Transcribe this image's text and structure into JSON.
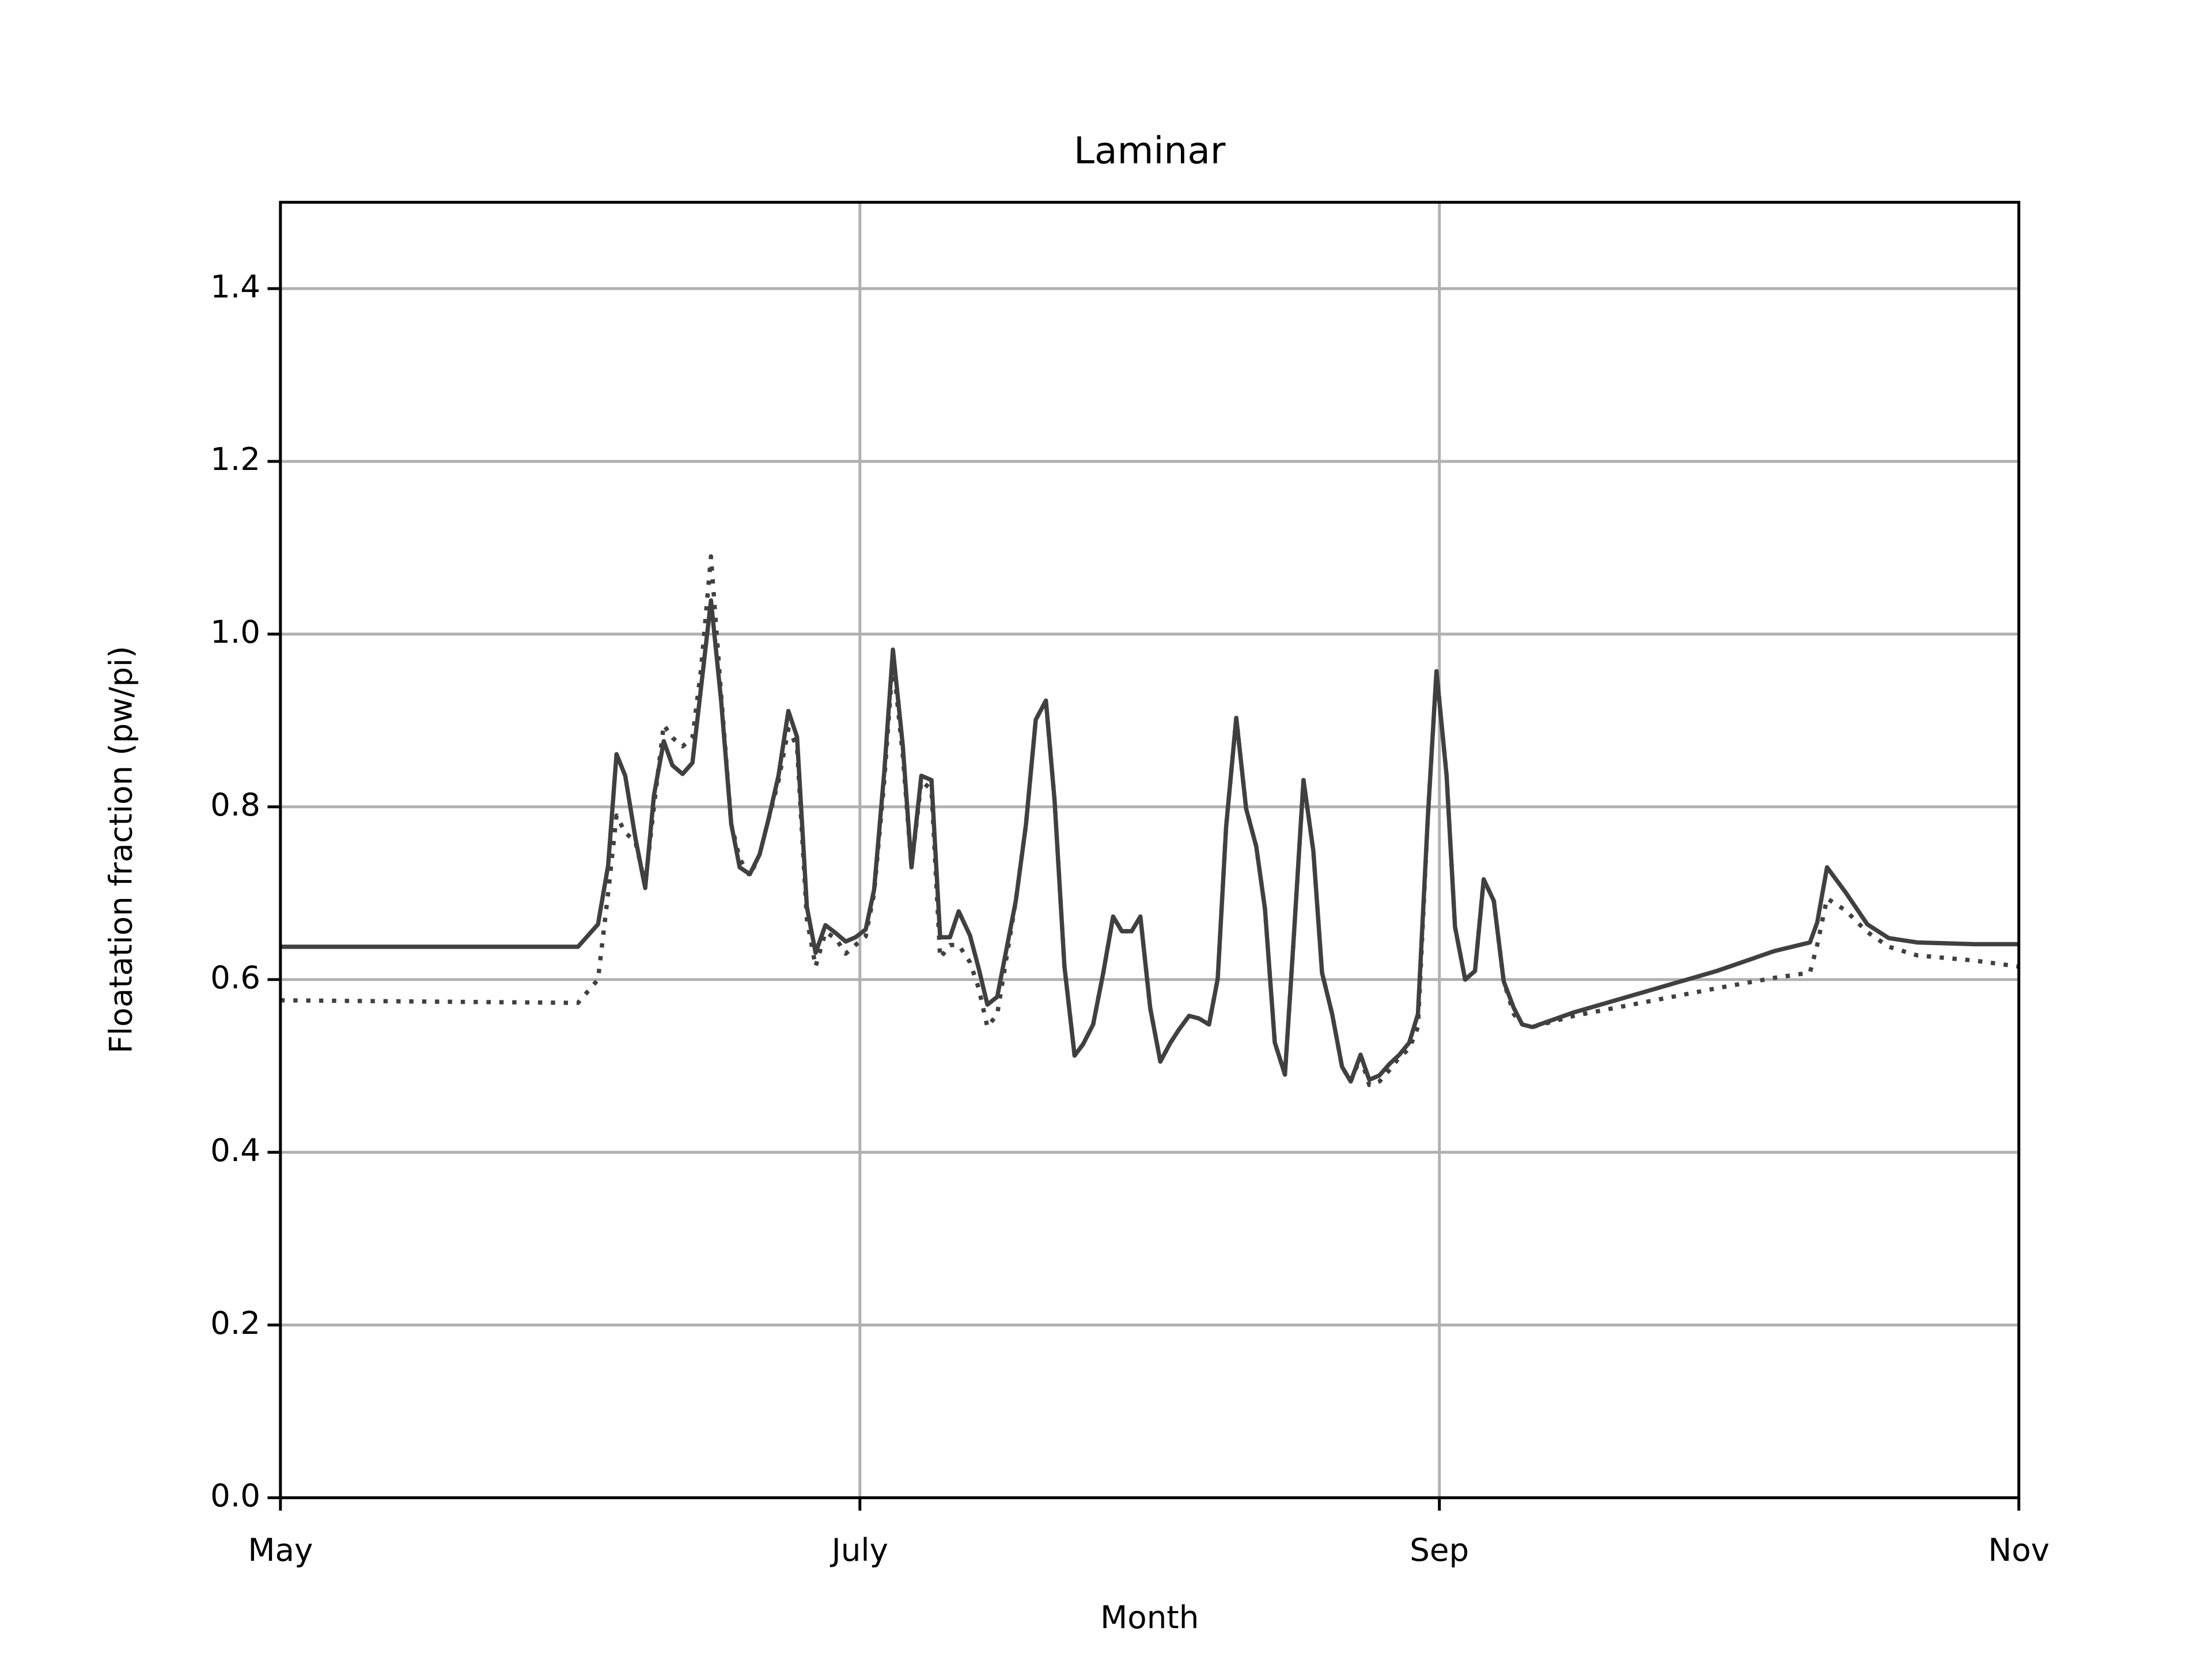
{
  "chart_data": {
    "type": "line",
    "title": "Laminar",
    "xlabel": "Month",
    "ylabel": "Floatation fraction (pw/pi)",
    "xlim": [
      5,
      11
    ],
    "xticks": [
      {
        "value": 5,
        "label": "May"
      },
      {
        "value": 7,
        "label": "July"
      },
      {
        "value": 9,
        "label": "Sep"
      },
      {
        "value": 11,
        "label": "Nov"
      }
    ],
    "ylim": [
      0,
      1.5
    ],
    "yticks": [
      {
        "value": 0,
        "label": "0.0"
      },
      0.2,
      0.4,
      0.6,
      0.8,
      {
        "value": 1,
        "label": "1.0"
      },
      1.2,
      1.4
    ],
    "grid": true,
    "x": [
      5,
      6.027,
      6.096,
      6.131,
      6.16,
      6.19,
      6.225,
      6.259,
      6.289,
      6.323,
      6.353,
      6.388,
      6.422,
      6.452,
      6.486,
      6.521,
      6.556,
      6.585,
      6.62,
      6.654,
      6.684,
      6.719,
      6.753,
      6.783,
      6.817,
      6.847,
      6.881,
      6.916,
      6.951,
      6.985,
      7.02,
      7.049,
      7.084,
      7.114,
      7.148,
      7.178,
      7.212,
      7.247,
      7.277,
      7.311,
      7.341,
      7.38,
      7.41,
      7.44,
      7.474,
      7.538,
      7.573,
      7.607,
      7.642,
      7.672,
      7.706,
      7.741,
      7.77,
      7.805,
      7.84,
      7.874,
      7.904,
      7.938,
      7.968,
      8.002,
      8.037,
      8.072,
      8.101,
      8.136,
      8.17,
      8.205,
      8.235,
      8.264,
      8.299,
      8.333,
      8.368,
      8.398,
      8.432,
      8.467,
      8.496,
      8.531,
      8.565,
      8.595,
      8.63,
      8.664,
      8.694,
      8.728,
      8.758,
      8.793,
      8.827,
      8.862,
      8.896,
      8.926,
      8.96,
      8.99,
      9.025,
      9.054,
      9.089,
      9.123,
      9.153,
      9.188,
      9.222,
      9.257,
      9.286,
      9.321,
      9.464,
      9.711,
      9.958,
      10.156,
      10.279,
      10.304,
      10.338,
      10.402,
      10.477,
      10.551,
      10.649,
      10.847,
      11
    ],
    "series": [
      {
        "color": "#404040",
        "style": "solid",
        "values": [
          0.638,
          0.638,
          0.664,
          0.732,
          0.861,
          0.836,
          0.764,
          0.706,
          0.813,
          0.876,
          0.848,
          0.838,
          0.851,
          0.939,
          1.039,
          0.923,
          0.78,
          0.73,
          0.722,
          0.745,
          0.785,
          0.836,
          0.911,
          0.881,
          0.684,
          0.631,
          0.663,
          0.654,
          0.644,
          0.649,
          0.658,
          0.704,
          0.84,
          0.982,
          0.871,
          0.73,
          0.836,
          0.831,
          0.649,
          0.649,
          0.679,
          0.651,
          0.613,
          0.571,
          0.58,
          0.691,
          0.779,
          0.901,
          0.923,
          0.807,
          0.615,
          0.512,
          0.525,
          0.548,
          0.608,
          0.673,
          0.656,
          0.656,
          0.673,
          0.567,
          0.505,
          0.527,
          0.542,
          0.558,
          0.555,
          0.548,
          0.601,
          0.777,
          0.903,
          0.798,
          0.754,
          0.682,
          0.527,
          0.49,
          0.641,
          0.831,
          0.749,
          0.608,
          0.56,
          0.499,
          0.482,
          0.513,
          0.484,
          0.489,
          0.502,
          0.513,
          0.527,
          0.56,
          0.787,
          0.957,
          0.836,
          0.661,
          0.6,
          0.61,
          0.716,
          0.691,
          0.598,
          0.567,
          0.548,
          0.545,
          0.562,
          0.586,
          0.61,
          0.633,
          0.643,
          0.666,
          0.73,
          0.701,
          0.664,
          0.648,
          0.643,
          0.641,
          0.641
        ]
      },
      {
        "color": "#404040",
        "style": "dotted",
        "values": [
          0.576,
          0.573,
          0.6,
          0.7,
          0.79,
          0.77,
          0.76,
          0.71,
          0.8,
          0.895,
          0.88,
          0.87,
          0.88,
          0.96,
          1.09,
          0.93,
          0.78,
          0.74,
          0.72,
          0.745,
          0.785,
          0.83,
          0.89,
          0.87,
          0.67,
          0.615,
          0.655,
          0.648,
          0.63,
          0.64,
          0.65,
          0.7,
          0.83,
          0.97,
          0.86,
          0.73,
          0.83,
          0.82,
          0.625,
          0.64,
          0.64,
          0.62,
          0.59,
          0.545,
          0.56,
          0.691,
          0.779,
          0.901,
          0.923,
          0.807,
          0.615,
          0.512,
          0.525,
          0.548,
          0.608,
          0.673,
          0.656,
          0.656,
          0.673,
          0.567,
          0.505,
          0.527,
          0.542,
          0.558,
          0.555,
          0.548,
          0.601,
          0.777,
          0.903,
          0.798,
          0.754,
          0.682,
          0.527,
          0.49,
          0.641,
          0.831,
          0.749,
          0.608,
          0.56,
          0.499,
          0.482,
          0.51,
          0.478,
          0.482,
          0.495,
          0.51,
          0.52,
          0.545,
          0.787,
          0.957,
          0.836,
          0.661,
          0.6,
          0.61,
          0.716,
          0.691,
          0.598,
          0.56,
          0.548,
          0.545,
          0.558,
          0.574,
          0.59,
          0.602,
          0.608,
          0.64,
          0.694,
          0.68,
          0.655,
          0.638,
          0.628,
          0.622,
          0.615
        ]
      }
    ]
  }
}
